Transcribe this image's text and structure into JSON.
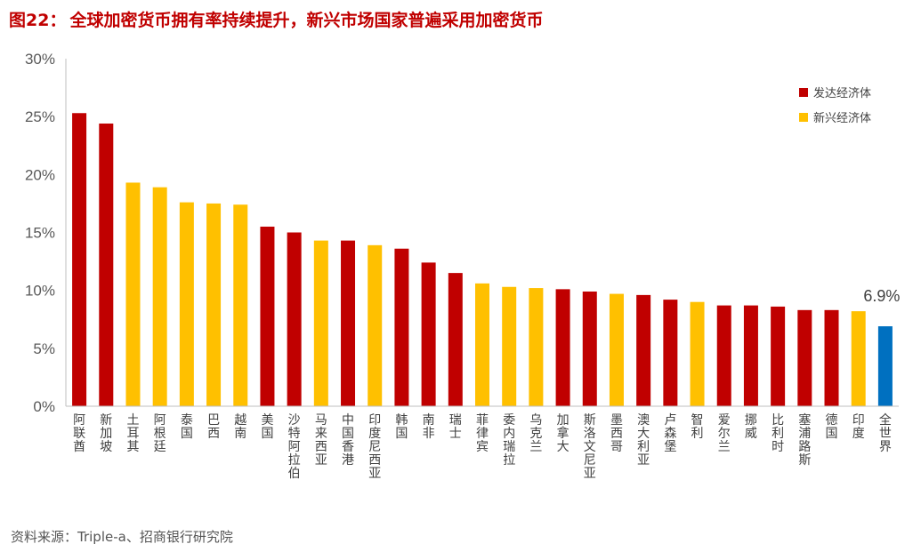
{
  "figure": {
    "number": "图22：",
    "title": "全球加密货币拥有率持续提升，新兴市场国家普遍采用加密货币",
    "source": "资料来源：Triple-a、招商银行研究院"
  },
  "colors": {
    "developed": "#c00000",
    "emerging": "#ffc000",
    "world": "#0070c0"
  },
  "chart_data": {
    "type": "bar",
    "categories": [
      "阿联酋",
      "新加坡",
      "土耳其",
      "阿根廷",
      "泰国",
      "巴西",
      "越南",
      "美国",
      "沙特阿拉伯",
      "马来西亚",
      "中国香港",
      "印度尼西亚",
      "韩国",
      "南非",
      "瑞士",
      "菲律宾",
      "委内瑞拉",
      "乌克兰",
      "加拿大",
      "斯洛文尼亚",
      "墨西哥",
      "澳大利亚",
      "卢森堡",
      "智利",
      "爱尔兰",
      "挪威",
      "比利时",
      "塞浦路斯",
      "德国",
      "印度",
      "全世界"
    ],
    "values": [
      25.3,
      24.4,
      19.3,
      18.9,
      17.6,
      17.5,
      17.4,
      15.5,
      15.0,
      14.3,
      14.3,
      13.9,
      13.6,
      12.4,
      11.5,
      10.6,
      10.3,
      10.2,
      10.1,
      9.9,
      9.7,
      9.6,
      9.2,
      9.0,
      8.7,
      8.7,
      8.6,
      8.3,
      8.3,
      8.2,
      6.9
    ],
    "groups": [
      "developed",
      "developed",
      "emerging",
      "emerging",
      "emerging",
      "emerging",
      "emerging",
      "developed",
      "developed",
      "emerging",
      "developed",
      "emerging",
      "developed",
      "developed",
      "developed",
      "emerging",
      "emerging",
      "emerging",
      "developed",
      "developed",
      "emerging",
      "developed",
      "developed",
      "emerging",
      "developed",
      "developed",
      "developed",
      "developed",
      "developed",
      "emerging",
      "world"
    ],
    "legend": [
      {
        "key": "developed",
        "label": "发达经济体"
      },
      {
        "key": "emerging",
        "label": "新兴经济体"
      }
    ],
    "legend_position": "top-right",
    "ylim": [
      0,
      30
    ],
    "y_ticks": [
      "0%",
      "5%",
      "10%",
      "15%",
      "20%",
      "25%",
      "30%"
    ],
    "annotation": "6.9%",
    "grid": false
  }
}
